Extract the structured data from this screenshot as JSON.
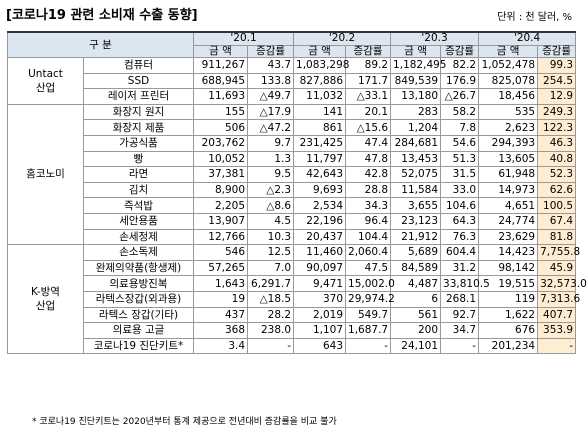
{
  "title": "[코로나19 관련 소비재 수출 동향]",
  "unit": "단위 : 천 달러, %",
  "table": {
    "header": {
      "category": "구 분",
      "periods": [
        "'20.1",
        "'20.2",
        "'20.3",
        "'20.4"
      ],
      "amount": "금 액",
      "rate": "증감률"
    },
    "groups": [
      {
        "label": [
          "Untact",
          "산업"
        ],
        "rows": [
          [
            "컴퓨터",
            "911,267",
            "43.7",
            "1,083,298",
            "89.2",
            "1,182,495",
            "82.2",
            "1,052,478",
            "99.3"
          ],
          [
            "SSD",
            "688,945",
            "133.8",
            "827,886",
            "171.7",
            "849,539",
            "176.9",
            "825,078",
            "254.5"
          ],
          [
            "레이저 프린터",
            "11,693",
            "△49.7",
            "11,032",
            "△33.1",
            "13,180",
            "△26.7",
            "18,456",
            "12.9"
          ]
        ]
      },
      {
        "label": [
          "홈코노미"
        ],
        "rows": [
          [
            "화장지 원지",
            "155",
            "△17.9",
            "141",
            "20.1",
            "283",
            "58.2",
            "535",
            "249.3"
          ],
          [
            "화장지 제품",
            "506",
            "△47.2",
            "861",
            "△15.6",
            "1,204",
            "7.8",
            "2,623",
            "122.3"
          ],
          [
            "가공식품",
            "203,762",
            "9.7",
            "231,425",
            "47.4",
            "284,681",
            "54.6",
            "294,393",
            "46.3"
          ],
          [
            "빵",
            "10,052",
            "1.3",
            "11,797",
            "47.8",
            "13,453",
            "51.3",
            "13,605",
            "40.8"
          ],
          [
            "라면",
            "37,381",
            "9.5",
            "42,643",
            "42.8",
            "52,075",
            "31.5",
            "61,948",
            "52.3"
          ],
          [
            "김치",
            "8,900",
            "△2.3",
            "9,693",
            "28.8",
            "11,584",
            "33.0",
            "14,973",
            "62.6"
          ],
          [
            "즉석밥",
            "2,205",
            "△8.6",
            "2,534",
            "34.3",
            "3,655",
            "104.6",
            "4,651",
            "100.5"
          ],
          [
            "세안용품",
            "13,907",
            "4.5",
            "22,196",
            "96.4",
            "23,123",
            "64.3",
            "24,774",
            "67.4"
          ],
          [
            "손세정제",
            "12,766",
            "10.3",
            "20,437",
            "104.4",
            "21,912",
            "76.3",
            "23,629",
            "81.8"
          ]
        ]
      },
      {
        "label": [
          "K-방역",
          "산업"
        ],
        "rows": [
          [
            "손소독제",
            "546",
            "12.5",
            "11,460",
            "2,060.4",
            "5,689",
            "604.4",
            "14,423",
            "7,755.8"
          ],
          [
            "완제의약품(항생제)",
            "57,265",
            "7.0",
            "90,097",
            "47.5",
            "84,589",
            "31.2",
            "98,142",
            "45.9"
          ],
          [
            "의료용방진복",
            "1,643",
            "6,291.7",
            "9,471",
            "15,002.0",
            "4,487",
            "33,810.5",
            "19,515",
            "32,573.0"
          ],
          [
            "라텍스장갑(외과용)",
            "19",
            "△18.5",
            "370",
            "29,974.2",
            "6",
            "268.1",
            "119",
            "7,313.6"
          ],
          [
            "라텍스 장갑(기타)",
            "437",
            "28.2",
            "2,019",
            "549.7",
            "561",
            "92.7",
            "1,622",
            "407.7"
          ],
          [
            "의료용 고글",
            "368",
            "238.0",
            "1,107",
            "1,687.7",
            "200",
            "34.7",
            "676",
            "353.9"
          ],
          [
            "코로나19 진단키트*",
            "3.4",
            "-",
            "643",
            "-",
            "24,101",
            "-",
            "201,234",
            "-"
          ]
        ]
      }
    ]
  },
  "footnote": "* 코로나19 진단키트는 2020년부터 통계 제공으로 전년대비 증감률을 비교 불가"
}
